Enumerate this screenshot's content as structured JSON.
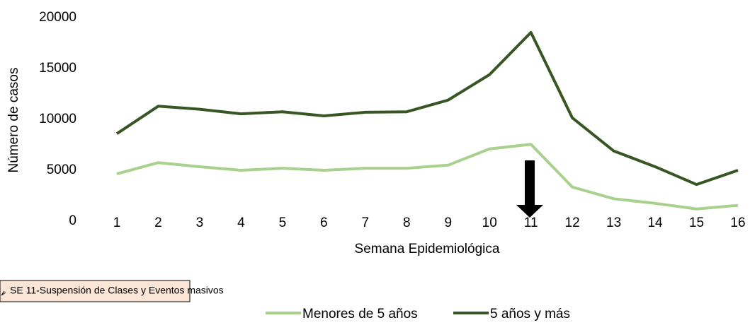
{
  "chart_data": {
    "type": "line",
    "x_label": "Semana Epidemiológica",
    "y_label": "Número de casos",
    "categories": [
      "1",
      "2",
      "3",
      "4",
      "5",
      "6",
      "7",
      "8",
      "9",
      "10",
      "11",
      "12",
      "13",
      "14",
      "15",
      "16"
    ],
    "series": [
      {
        "name": "Menores de 5 años",
        "color": "#a9d18e",
        "values": [
          4650,
          5750,
          5350,
          5000,
          5200,
          5000,
          5200,
          5200,
          5500,
          7100,
          7550,
          3350,
          2200,
          1750,
          1200,
          1550
        ]
      },
      {
        "name": "5 años y más",
        "color": "#375623",
        "values": [
          8600,
          11300,
          11000,
          10550,
          10750,
          10350,
          10700,
          10750,
          11900,
          14400,
          18550,
          10150,
          6900,
          5350,
          3600,
          5000
        ]
      }
    ],
    "ylim": [
      0,
      20000
    ],
    "yticks": [
      0,
      5000,
      10000,
      15000,
      20000
    ],
    "annotation": "SE 11-Suspensión de Clases y Eventos masivos",
    "legend": "bottom"
  }
}
